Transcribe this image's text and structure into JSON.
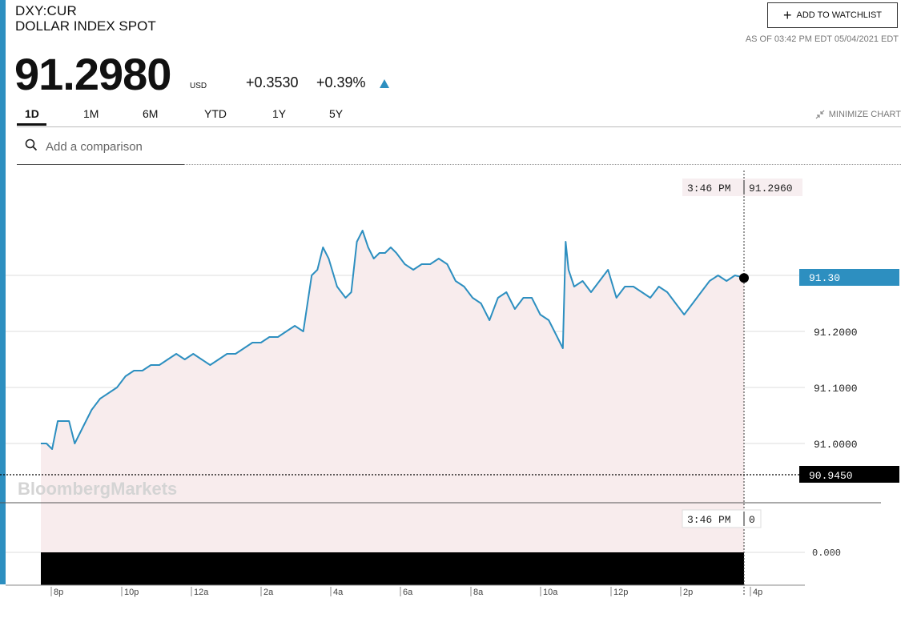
{
  "header": {
    "ticker": "DXY:CUR",
    "name": "DOLLAR INDEX SPOT",
    "price": "91.2980",
    "currency": "USD",
    "change": "+0.3530",
    "change_pct": "+0.39%",
    "watchlist_label": "ADD TO WATCHLIST",
    "as_of": "AS OF 03:42 PM EDT 05/04/2021 EDT"
  },
  "tabs": [
    {
      "label": "1D",
      "active": true
    },
    {
      "label": "1M"
    },
    {
      "label": "6M"
    },
    {
      "label": "YTD"
    },
    {
      "label": "1Y"
    },
    {
      "label": "5Y"
    }
  ],
  "minimize_label": "MINIMIZE CHART",
  "search": {
    "placeholder": "Add a comparison"
  },
  "icons": {
    "search": "search-icon",
    "plus": "plus-icon",
    "minimize": "minimize-arrows-icon",
    "change_arrow": "up-arrow-icon"
  },
  "colors": {
    "accent": "#2d8fc0",
    "area": "#f8eced",
    "line": "#2d8fc0"
  },
  "watermark": "BloombergMarkets",
  "chart_data": {
    "type": "line",
    "title": "",
    "y_ticks": [
      "91.2000",
      "91.1000",
      "91.0000"
    ],
    "ylim": [
      90.85,
      91.42
    ],
    "x_ticks": [
      "8p",
      "10p",
      "12a",
      "2a",
      "4a",
      "6a",
      "8a",
      "10a",
      "12p",
      "2p",
      "4p"
    ],
    "current_value_label": "91.30",
    "previous_close_label": "90.9450",
    "crosshair": {
      "time": "3:46 PM",
      "value": "91.2960",
      "volume_time": "3:46 PM",
      "volume_value": "0"
    },
    "volume_axis_label": "0.000",
    "series": [
      {
        "x": [
          "19:00",
          "19:10",
          "19:20",
          "19:30",
          "19:40",
          "19:50",
          "20:00",
          "20:15",
          "20:30",
          "20:45",
          "21:00",
          "21:15",
          "21:30",
          "21:45",
          "22:00",
          "22:15",
          "22:30",
          "22:45",
          "23:00",
          "23:15",
          "23:30",
          "23:45",
          "00:00",
          "00:15",
          "00:30",
          "00:45",
          "01:00",
          "01:15",
          "01:30",
          "01:45",
          "02:00",
          "02:15",
          "02:30",
          "02:45",
          "03:00",
          "03:10",
          "03:20",
          "03:30",
          "03:45",
          "04:00",
          "04:10",
          "04:20",
          "04:30",
          "04:40",
          "04:50",
          "05:00",
          "05:10",
          "05:20",
          "05:30",
          "05:45",
          "06:00",
          "06:15",
          "06:30",
          "06:45",
          "07:00",
          "07:15",
          "07:30",
          "07:45",
          "08:00",
          "08:15",
          "08:30",
          "08:45",
          "09:00",
          "09:15",
          "09:30",
          "09:45",
          "10:00",
          "10:15",
          "10:25",
          "10:30",
          "10:35",
          "10:45",
          "11:00",
          "11:15",
          "11:30",
          "11:45",
          "12:00",
          "12:15",
          "12:30",
          "12:45",
          "13:00",
          "13:15",
          "13:30",
          "13:45",
          "14:00",
          "14:15",
          "14:30",
          "14:45",
          "15:00",
          "15:15",
          "15:30",
          "15:46"
        ],
        "y": [
          91.0,
          91.0,
          90.99,
          91.04,
          91.04,
          91.04,
          91.0,
          91.03,
          91.06,
          91.08,
          91.09,
          91.1,
          91.12,
          91.13,
          91.13,
          91.14,
          91.14,
          91.15,
          91.16,
          91.15,
          91.16,
          91.15,
          91.14,
          91.15,
          91.16,
          91.16,
          91.17,
          91.18,
          91.18,
          91.19,
          91.19,
          91.2,
          91.21,
          91.2,
          91.3,
          91.31,
          91.35,
          91.33,
          91.28,
          91.26,
          91.27,
          91.36,
          91.38,
          91.35,
          91.33,
          91.34,
          91.34,
          91.35,
          91.34,
          91.32,
          91.31,
          91.32,
          91.32,
          91.33,
          91.32,
          91.29,
          91.28,
          91.26,
          91.25,
          91.22,
          91.26,
          91.27,
          91.24,
          91.26,
          91.26,
          91.23,
          91.22,
          91.19,
          91.17,
          91.36,
          91.31,
          91.28,
          91.29,
          91.27,
          91.29,
          91.31,
          91.26,
          91.28,
          91.28,
          91.27,
          91.26,
          91.28,
          91.27,
          91.25,
          91.23,
          91.25,
          91.27,
          91.29,
          91.3,
          91.29,
          91.3,
          91.296
        ]
      }
    ]
  }
}
